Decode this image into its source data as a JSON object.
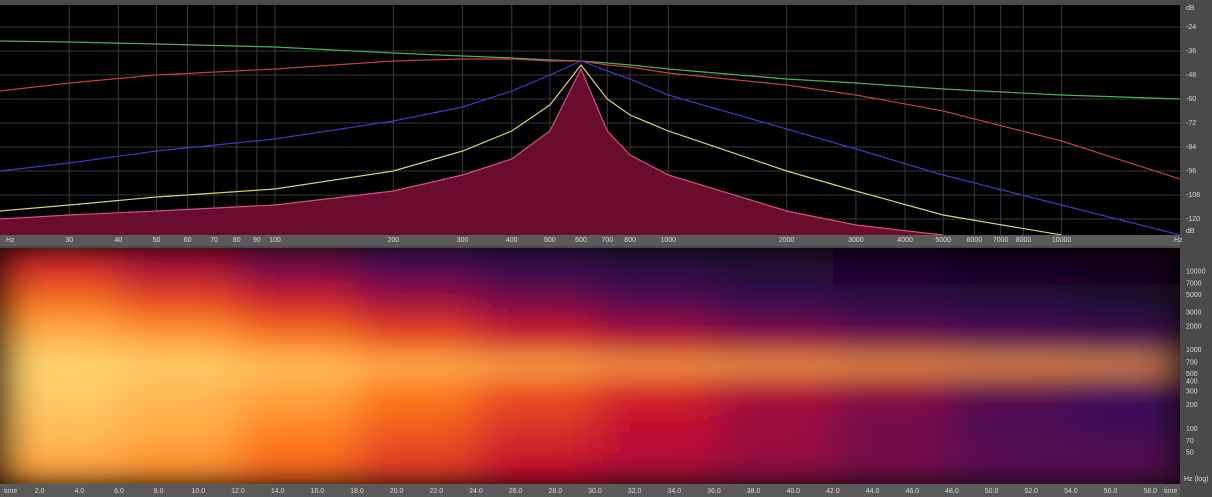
{
  "chart_data": [
    {
      "type": "line",
      "x_label": "Hz",
      "y_label": "dB",
      "log_x": true,
      "grid": true,
      "x": [
        20,
        30,
        50,
        100,
        200,
        300,
        400,
        500,
        600,
        700,
        800,
        1000,
        2000,
        3000,
        5000,
        10000,
        20000
      ],
      "xlim": [
        20,
        20000
      ],
      "xticks": [
        30,
        40,
        50,
        60,
        70,
        80,
        90,
        100,
        200,
        300,
        400,
        500,
        600,
        700,
        800,
        1000,
        2000,
        3000,
        4000,
        5000,
        6000,
        7000,
        8000,
        10000
      ],
      "ylim": [
        -128,
        -13
      ],
      "yticks": [
        -24,
        -36,
        -48,
        -60,
        -72,
        -84,
        -96,
        -108,
        -120
      ],
      "series": [
        {
          "color": "#4fae5a",
          "values": [
            -31,
            -31.5,
            -32.5,
            -34,
            -37,
            -38.5,
            -39.5,
            -40.5,
            -41,
            -42,
            -43,
            -45,
            -50,
            -52,
            -55,
            -58,
            -60
          ]
        },
        {
          "color": "#c0403a",
          "values": [
            -56,
            -52,
            -48,
            -45,
            -41,
            -40,
            -40,
            -41,
            -41,
            -43,
            -44,
            -47,
            -53,
            -58,
            -66,
            -81,
            -100
          ]
        },
        {
          "color": "#3a3ac8",
          "values": [
            -96,
            -92,
            -86,
            -80,
            -71,
            -64,
            -56,
            -48,
            -41,
            -46,
            -50,
            -58,
            -75,
            -85,
            -98,
            -113,
            -128
          ]
        },
        {
          "color": "#d8d070",
          "values": [
            -116,
            -113,
            -109,
            -105,
            -96,
            -86,
            -76,
            -63,
            -43,
            -60,
            -68,
            -76,
            -96,
            -106,
            -118,
            -128,
            null
          ]
        },
        {
          "color": "#d0508a",
          "fill": "#6a0c2e",
          "values": [
            -120,
            -118,
            -116,
            -113,
            -106,
            -98,
            -90,
            -76,
            -45,
            -76,
            -88,
            -98,
            -116,
            -123,
            -128,
            null,
            null
          ]
        }
      ]
    },
    {
      "type": "heatmap",
      "x_label": "time",
      "y_label": "Hz (log)",
      "log_y": true,
      "x_bins": [
        0,
        6,
        12,
        18,
        24,
        30,
        36,
        42,
        48,
        54,
        59.5
      ],
      "y_bins": [
        20,
        50,
        100,
        200,
        400,
        550,
        800,
        1500,
        3000,
        7000,
        20000
      ],
      "xlim": [
        0,
        59.5
      ],
      "ylim": [
        20,
        20000
      ],
      "zlim": [
        0,
        1
      ],
      "colormap": [
        "#050008",
        "#3b0f5a",
        "#c8102e",
        "#ff7a1a",
        "#ffe27a"
      ],
      "z": [
        [
          0.85,
          0.8,
          0.7,
          0.6,
          0.5,
          0.45,
          0.4,
          0.35,
          0.3,
          0.3
        ],
        [
          0.9,
          0.85,
          0.75,
          0.65,
          0.55,
          0.48,
          0.42,
          0.35,
          0.3,
          0.28
        ],
        [
          0.92,
          0.88,
          0.8,
          0.7,
          0.6,
          0.5,
          0.42,
          0.35,
          0.28,
          0.25
        ],
        [
          0.95,
          0.9,
          0.85,
          0.75,
          0.65,
          0.55,
          0.45,
          0.38,
          0.3,
          0.25
        ],
        [
          0.95,
          0.92,
          0.88,
          0.8,
          0.72,
          0.62,
          0.55,
          0.48,
          0.42,
          0.38
        ],
        [
          0.98,
          0.97,
          0.95,
          0.93,
          0.92,
          0.9,
          0.9,
          0.88,
          0.87,
          0.86
        ],
        [
          0.92,
          0.88,
          0.8,
          0.7,
          0.6,
          0.52,
          0.45,
          0.4,
          0.35,
          0.3
        ],
        [
          0.85,
          0.78,
          0.68,
          0.58,
          0.48,
          0.4,
          0.33,
          0.28,
          0.24,
          0.2
        ],
        [
          0.72,
          0.62,
          0.52,
          0.42,
          0.34,
          0.28,
          0.22,
          0.18,
          0.15,
          0.12
        ],
        [
          0.55,
          0.45,
          0.35,
          0.28,
          0.22,
          0.17,
          0.13,
          0.1,
          0.08,
          0.06
        ]
      ],
      "xticks": [
        {
          "value": 2,
          "label": "2.0"
        },
        {
          "value": 4,
          "label": "4.0"
        },
        {
          "value": 6,
          "label": "6.0"
        },
        {
          "value": 8,
          "label": "8.0"
        },
        {
          "value": 10,
          "label": "10.0"
        },
        {
          "value": 12,
          "label": "12.0"
        },
        {
          "value": 14,
          "label": "14.0"
        },
        {
          "value": 16,
          "label": "16.0"
        },
        {
          "value": 18,
          "label": "18.0"
        },
        {
          "value": 20,
          "label": "20.0"
        },
        {
          "value": 22,
          "label": "22.0"
        },
        {
          "value": 24,
          "label": "24.0"
        },
        {
          "value": 26,
          "label": "26.0"
        },
        {
          "value": 28,
          "label": "28.0"
        },
        {
          "value": 30,
          "label": "30.0"
        },
        {
          "value": 32,
          "label": "32.0"
        },
        {
          "value": 34,
          "label": "34.0"
        },
        {
          "value": 36,
          "label": "36.0"
        },
        {
          "value": 38,
          "label": "38.0"
        },
        {
          "value": 40,
          "label": "40.0"
        },
        {
          "value": 42,
          "label": "42.0"
        },
        {
          "value": 44,
          "label": "44.0"
        },
        {
          "value": 46,
          "label": "46.0"
        },
        {
          "value": 48,
          "label": "48.0"
        },
        {
          "value": 50,
          "label": "50.0"
        },
        {
          "value": 52,
          "label": "52.0"
        },
        {
          "value": 54,
          "label": "54.0"
        },
        {
          "value": 56,
          "label": "56.0"
        },
        {
          "value": 58,
          "label": "58.0"
        }
      ],
      "yticks": [
        50,
        70,
        100,
        200,
        300,
        400,
        500,
        700,
        1000,
        2000,
        3000,
        5000,
        7000,
        10000
      ]
    }
  ]
}
